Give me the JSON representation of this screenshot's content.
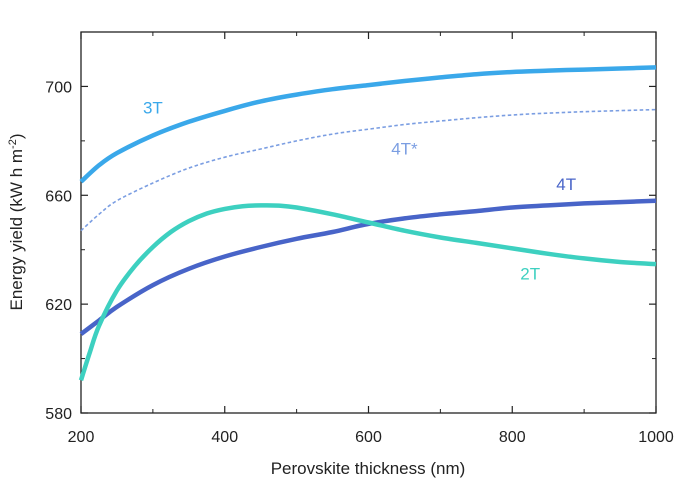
{
  "chart_data": {
    "type": "line",
    "title": "",
    "xlabel": "Perovskite thickness (nm)",
    "ylabel_main": "Energy yield (kW h m",
    "ylabel_sup": "-2",
    "ylabel_close": ")",
    "xlim": [
      200,
      1000
    ],
    "ylim": [
      580,
      720
    ],
    "x_ticks": [
      200,
      400,
      600,
      800,
      1000
    ],
    "y_ticks": [
      580,
      620,
      660,
      700
    ],
    "grid": false,
    "legend": "inline labels",
    "series": [
      {
        "name": "3T",
        "color": "#3aa8ea",
        "style": "solid",
        "x": [
          200,
          225,
          250,
          300,
          350,
          400,
          450,
          500,
          550,
          600,
          650,
          700,
          750,
          800,
          850,
          900,
          950,
          1000
        ],
        "y": [
          665,
          671,
          675.5,
          682,
          687,
          691,
          694.5,
          697,
          699,
          700.5,
          702,
          703.3,
          704.5,
          705.3,
          705.8,
          706.2,
          706.6,
          707
        ]
      },
      {
        "name": "4T*",
        "color": "#7b9ee2",
        "style": "dashed",
        "x": [
          200,
          225,
          250,
          300,
          350,
          400,
          450,
          500,
          550,
          600,
          650,
          700,
          750,
          800,
          850,
          900,
          950,
          1000
        ],
        "y": [
          647,
          653,
          658,
          664.5,
          670,
          674,
          677,
          680,
          682.5,
          684.3,
          686,
          687.3,
          688.5,
          689.5,
          690.2,
          690.7,
          691.1,
          691.5
        ]
      },
      {
        "name": "4T",
        "color": "#4864c8",
        "style": "solid",
        "x": [
          200,
          225,
          250,
          300,
          350,
          400,
          450,
          500,
          550,
          600,
          650,
          700,
          750,
          800,
          850,
          900,
          950,
          1000
        ],
        "y": [
          609,
          614,
          619,
          627,
          633,
          637.5,
          641,
          644,
          646.5,
          649.5,
          651.5,
          653,
          654.2,
          655.5,
          656.3,
          657,
          657.5,
          658
        ]
      },
      {
        "name": "2T",
        "color": "#3dd0c0",
        "style": "solid",
        "x": [
          200,
          212,
          225,
          250,
          275,
          300,
          325,
          350,
          375,
          400,
          425,
          450,
          475,
          500,
          550,
          600,
          650,
          700,
          750,
          800,
          850,
          900,
          950,
          1000
        ],
        "y": [
          592,
          602,
          612,
          625,
          634,
          641,
          646.5,
          650.5,
          653.3,
          655,
          656,
          656.3,
          656.2,
          655.5,
          653,
          650,
          647,
          644.5,
          642.5,
          640.5,
          638.5,
          636.8,
          635.5,
          634.7
        ]
      }
    ],
    "annotations": [
      {
        "text": "3T",
        "series": "3T",
        "x": 300,
        "y": 690
      },
      {
        "text": "4T*",
        "series": "4T*",
        "x": 650,
        "y": 675
      },
      {
        "text": "4T",
        "series": "4T",
        "x": 875,
        "y": 662
      },
      {
        "text": "2T",
        "series": "2T",
        "x": 825,
        "y": 629
      }
    ]
  }
}
